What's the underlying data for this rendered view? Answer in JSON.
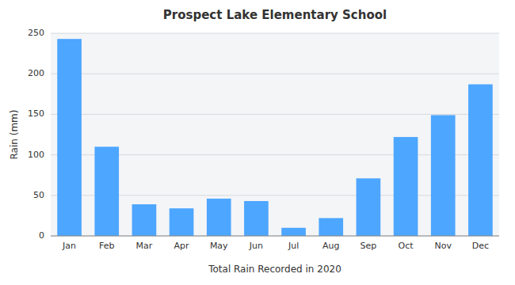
{
  "chart_data": {
    "type": "bar",
    "title": "Prospect Lake Elementary School",
    "xlabel": "Total Rain Recorded in 2020",
    "ylabel": "Rain (mm)",
    "categories": [
      "Jan",
      "Feb",
      "Mar",
      "Apr",
      "May",
      "Jun",
      "Jul",
      "Aug",
      "Sep",
      "Oct",
      "Nov",
      "Dec"
    ],
    "values": [
      243,
      110,
      39,
      34,
      46,
      43,
      10,
      22,
      71,
      122,
      149,
      187
    ],
    "color": "#4DA6FF",
    "ylim": [
      0,
      250
    ],
    "yticks": [
      0,
      50,
      100,
      150,
      200,
      250
    ],
    "grid": true
  }
}
